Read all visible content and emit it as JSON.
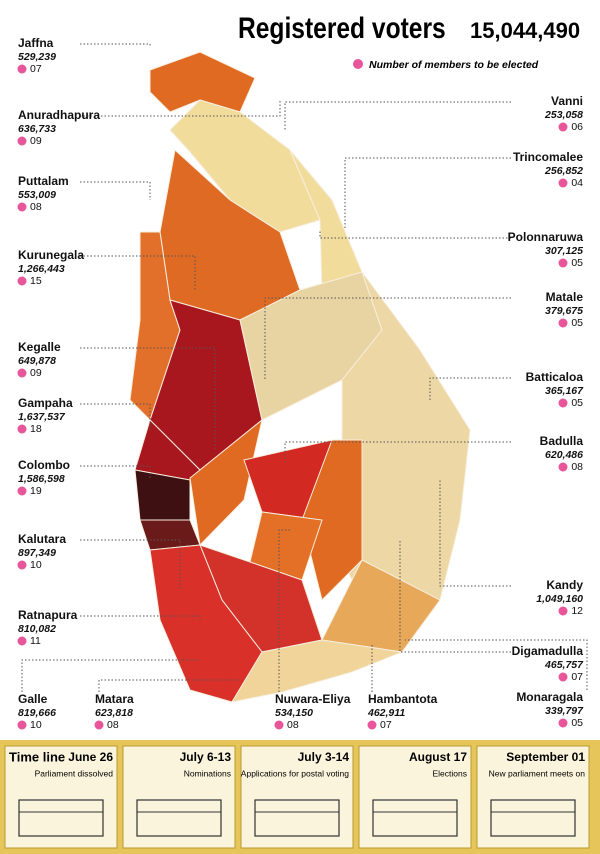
{
  "header": {
    "title": "Registered voters",
    "total": "15,044,490",
    "legend": "Number of members to be elected"
  },
  "districts": [
    {
      "name": "Jaffna",
      "voters": "529,239",
      "members": "07"
    },
    {
      "name": "Anuradhapura",
      "voters": "636,733",
      "members": "09"
    },
    {
      "name": "Puttalam",
      "voters": "553,009",
      "members": "08"
    },
    {
      "name": "Kurunegala",
      "voters": "1,266,443",
      "members": "15"
    },
    {
      "name": "Kegalle",
      "voters": "649,878",
      "members": "09"
    },
    {
      "name": "Gampaha",
      "voters": "1,637,537",
      "members": "18"
    },
    {
      "name": "Colombo",
      "voters": "1,586,598",
      "members": "19"
    },
    {
      "name": "Kalutara",
      "voters": "897,349",
      "members": "10"
    },
    {
      "name": "Ratnapura",
      "voters": "810,082",
      "members": "11"
    },
    {
      "name": "Galle",
      "voters": "819,666",
      "members": "10"
    },
    {
      "name": "Matara",
      "voters": "623,818",
      "members": "08"
    },
    {
      "name": "Nuwara-Eliya",
      "voters": "534,150",
      "members": "08"
    },
    {
      "name": "Hambantota",
      "voters": "462,911",
      "members": "07"
    },
    {
      "name": "Vanni",
      "voters": "253,058",
      "members": "06"
    },
    {
      "name": "Trincomalee",
      "voters": "256,852",
      "members": "04"
    },
    {
      "name": "Polonnaruwa",
      "voters": "307,125",
      "members": "05"
    },
    {
      "name": "Matale",
      "voters": "379,675",
      "members": "05"
    },
    {
      "name": "Batticaloa",
      "voters": "365,167",
      "members": "05"
    },
    {
      "name": "Badulla",
      "voters": "620,486",
      "members": "08"
    },
    {
      "name": "Kandy",
      "voters": "1,049,160",
      "members": "12"
    },
    {
      "name": "Digamadulla",
      "voters": "465,757",
      "members": "07"
    },
    {
      "name": "Monaragala",
      "voters": "339,797",
      "members": "05"
    }
  ],
  "timeline": {
    "label": "Time line",
    "events": [
      {
        "date": "June 26",
        "text": "Parliament dissolved"
      },
      {
        "date": "July 6-13",
        "text": "Nominations"
      },
      {
        "date": "July 3-14",
        "text": "Applications for postal voting"
      },
      {
        "date": "August 17",
        "text": "Elections"
      },
      {
        "date": "September 01",
        "text": "New parliament meets on"
      }
    ]
  }
}
